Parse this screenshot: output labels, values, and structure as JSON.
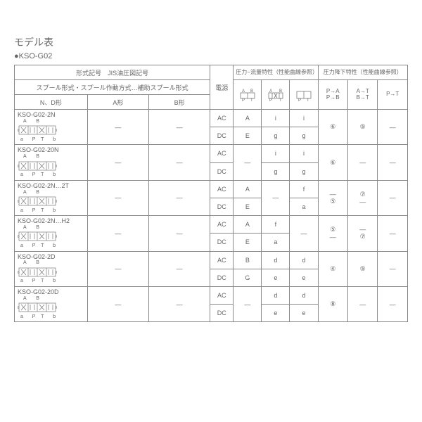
{
  "title": "モデル表",
  "subtitle": "●KSO-G02",
  "headers": {
    "model_header": "形式記号　JIS油圧図記号",
    "spool_header": "スプール形式・スプール作動方式…補助スプール形式",
    "nd": "N、D形",
    "a": "A形",
    "b": "B形",
    "power": "電源",
    "flow_header": "圧力−流量特性（性能曲線参照）",
    "pd_header": "圧力降下特性（性能曲線参照）",
    "pd1": "P→A\nP→B",
    "pd2": "A→T\nB→T",
    "pd3": "P→T"
  },
  "power_labels": {
    "ac": "AC",
    "dc": "DC"
  },
  "models": [
    {
      "name": "KSO-G02-2N",
      "a": "—",
      "b": "—",
      "rows": [
        {
          "ps": "AC",
          "f": [
            "A",
            "i",
            "i"
          ]
        },
        {
          "ps": "DC",
          "f": [
            "E",
            "g",
            "g"
          ]
        }
      ],
      "pd": [
        "⑥",
        "⑤",
        "—"
      ]
    },
    {
      "name": "KSO-G02-20N",
      "a": "—",
      "b": "—",
      "rows": [
        {
          "ps": "AC",
          "f": [
            "—",
            "i",
            "i"
          ]
        },
        {
          "ps": "DC",
          "f": [
            "",
            "g",
            "g"
          ]
        }
      ],
      "pd": [
        "⑥",
        "—",
        "—"
      ],
      "merge_f0": true
    },
    {
      "name": "KSO-G02-2N…2T",
      "a": "—",
      "b": "—",
      "rows": [
        {
          "ps": "AC",
          "f": [
            "A",
            "—",
            "f"
          ]
        },
        {
          "ps": "DC",
          "f": [
            "E",
            "",
            "a"
          ]
        }
      ],
      "pd": [
        "—\n⑤",
        "⑦\n—",
        "—"
      ],
      "merge_f1": true
    },
    {
      "name": "KSO-G02-2N…H2",
      "a": "—",
      "b": "—",
      "rows": [
        {
          "ps": "AC",
          "f": [
            "A",
            "f",
            "—"
          ]
        },
        {
          "ps": "DC",
          "f": [
            "E",
            "a",
            ""
          ]
        }
      ],
      "pd": [
        "⑤\n—",
        "—\n⑦",
        "—"
      ],
      "merge_f2": true
    },
    {
      "name": "KSO-G02-2D",
      "a": "—",
      "b": "—",
      "rows": [
        {
          "ps": "AC",
          "f": [
            "B",
            "d",
            "d"
          ]
        },
        {
          "ps": "DC",
          "f": [
            "G",
            "e",
            "e"
          ]
        }
      ],
      "pd": [
        "④",
        "⑤",
        "—"
      ]
    },
    {
      "name": "KSO-G02-20D",
      "a": "—",
      "b": "—",
      "rows": [
        {
          "ps": "AC",
          "f": [
            "—",
            "d",
            "d"
          ]
        },
        {
          "ps": "DC",
          "f": [
            "",
            "e",
            "e"
          ]
        }
      ],
      "pd": [
        "⑧",
        "—",
        "—"
      ],
      "merge_f0": true
    }
  ],
  "colors": {
    "border": "#888888",
    "text": "#666666",
    "bg": "#ffffff"
  }
}
